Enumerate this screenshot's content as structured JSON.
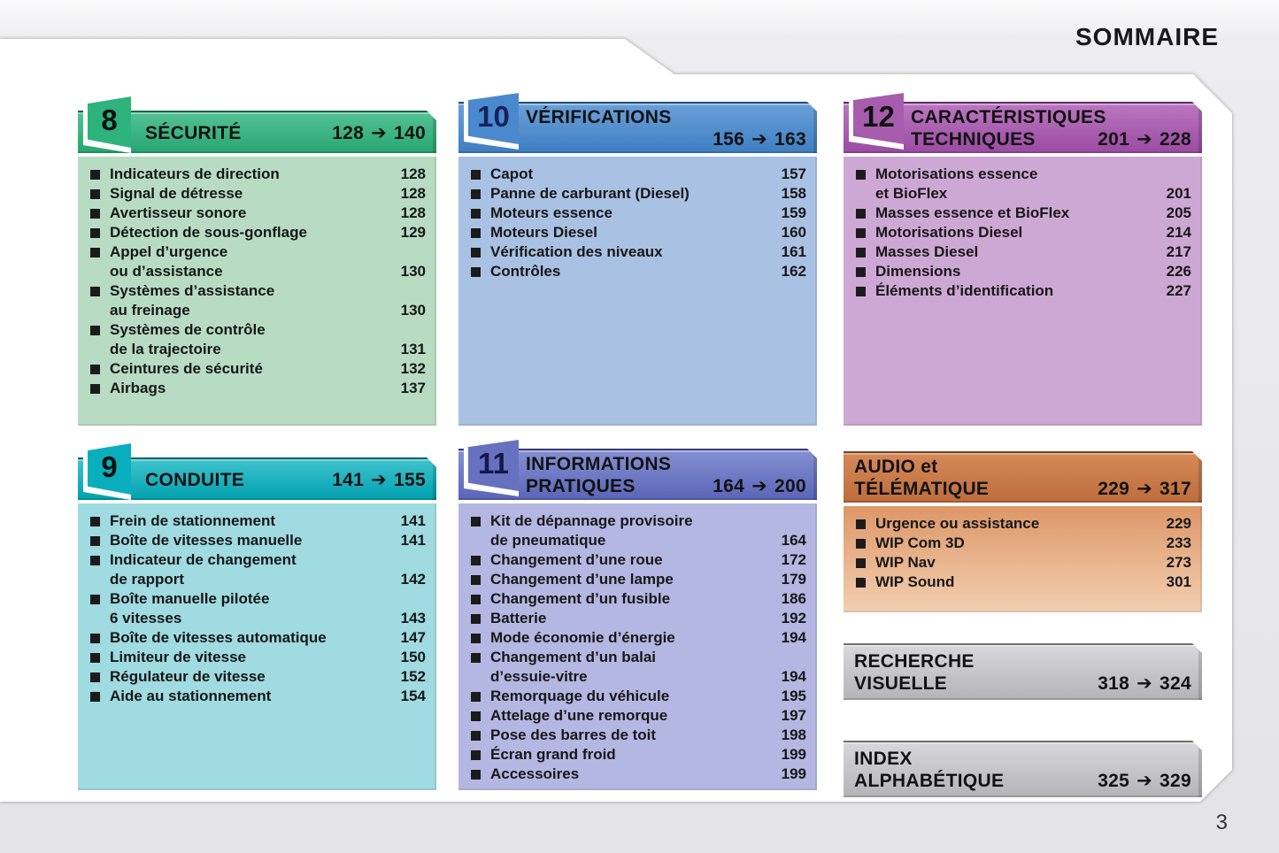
{
  "page": {
    "title": "SOMMAIRE",
    "page_number": "3"
  },
  "glyphs": {
    "arrow": "➔"
  },
  "columns": [
    {
      "boxes": [
        {
          "number": "8",
          "title_line1": "SÉCURITÉ",
          "range_from": "128",
          "range_to": "140",
          "colors": {
            "hdr_top": "#55c294",
            "hdr_bot": "#27a572",
            "body_top": "#b7dcc3",
            "body_bot": "#b7dcc3",
            "plate": "#2eb37d",
            "num": "#101010"
          },
          "items": [
            {
              "lines": [
                "Indicateurs de direction"
              ],
              "page": "128"
            },
            {
              "lines": [
                "Signal de détresse"
              ],
              "page": "128"
            },
            {
              "lines": [
                "Avertisseur sonore"
              ],
              "page": "128"
            },
            {
              "lines": [
                "Détection de sous-gonflage"
              ],
              "page": "129"
            },
            {
              "lines": [
                "Appel d’urgence",
                "ou d’assistance"
              ],
              "page": "130"
            },
            {
              "lines": [
                "Systèmes d’assistance",
                "au freinage"
              ],
              "page": "130"
            },
            {
              "lines": [
                "Systèmes de contrôle",
                "de la trajectoire"
              ],
              "page": "131"
            },
            {
              "lines": [
                "Ceintures de sécurité"
              ],
              "page": "132"
            },
            {
              "lines": [
                "Airbags"
              ],
              "page": "137"
            }
          ]
        },
        {
          "number": "9",
          "title_line1": "CONDUITE",
          "range_from": "141",
          "range_to": "155",
          "colors": {
            "hdr_top": "#3fc3cd",
            "hdr_bot": "#00a0af",
            "body_top": "#9fdbe1",
            "body_bot": "#9fdbe1",
            "plate": "#09aebc",
            "num": "#101010"
          },
          "items": [
            {
              "lines": [
                "Frein de stationnement"
              ],
              "page": "141"
            },
            {
              "lines": [
                "Boîte de vitesses manuelle"
              ],
              "page": "141"
            },
            {
              "lines": [
                "Indicateur de changement",
                "de rapport"
              ],
              "page": "142"
            },
            {
              "lines": [
                "Boîte manuelle pilotée",
                "6 vitesses"
              ],
              "page": "143"
            },
            {
              "lines": [
                "Boîte de vitesses automatique"
              ],
              "page": "147"
            },
            {
              "lines": [
                "Limiteur de vitesse"
              ],
              "page": "150"
            },
            {
              "lines": [
                "Régulateur de vitesse"
              ],
              "page": "152"
            },
            {
              "lines": [
                "Aide au stationnement"
              ],
              "page": "154"
            }
          ]
        }
      ]
    },
    {
      "boxes": [
        {
          "number": "10",
          "title_line1": "VÉRIFICATIONS",
          "title_line2": "",
          "range_from": "156",
          "range_to": "163",
          "colors": {
            "hdr_top": "#6ba0d8",
            "hdr_bot": "#3e7ec2",
            "body_top": "#a9c1e3",
            "body_bot": "#a9c1e3",
            "plate": "#4a89cd",
            "num": "#16225c"
          },
          "items": [
            {
              "lines": [
                "Capot"
              ],
              "page": "157"
            },
            {
              "lines": [
                "Panne de carburant (Diesel)"
              ],
              "page": "158"
            },
            {
              "lines": [
                "Moteurs essence"
              ],
              "page": "159"
            },
            {
              "lines": [
                "Moteurs Diesel"
              ],
              "page": "160"
            },
            {
              "lines": [
                "Vérification des niveaux"
              ],
              "page": "161"
            },
            {
              "lines": [
                "Contrôles"
              ],
              "page": "162"
            }
          ]
        },
        {
          "number": "11",
          "title_line1": "INFORMATIONS",
          "title_line2": "PRATIQUES",
          "range_from": "164",
          "range_to": "200",
          "colors": {
            "hdr_top": "#8590d2",
            "hdr_bot": "#5a65b8",
            "body_top": "#b4b7e2",
            "body_bot": "#b4b7e2",
            "plate": "#6671c0",
            "num": "#14184a"
          },
          "items": [
            {
              "lines": [
                "Kit de dépannage provisoire",
                "de pneumatique"
              ],
              "page": "164"
            },
            {
              "lines": [
                "Changement d’une roue"
              ],
              "page": "172"
            },
            {
              "lines": [
                "Changement d’une lampe"
              ],
              "page": "179"
            },
            {
              "lines": [
                "Changement d’un fusible"
              ],
              "page": "186"
            },
            {
              "lines": [
                "Batterie"
              ],
              "page": "192"
            },
            {
              "lines": [
                "Mode économie d’énergie"
              ],
              "page": "194"
            },
            {
              "lines": [
                "Changement d’un balai",
                "d’essuie-vitre"
              ],
              "page": "194"
            },
            {
              "lines": [
                "Remorquage du véhicule"
              ],
              "page": "195"
            },
            {
              "lines": [
                "Attelage d’une remorque"
              ],
              "page": "197"
            },
            {
              "lines": [
                "Pose des barres de toit"
              ],
              "page": "198"
            },
            {
              "lines": [
                "Écran grand froid"
              ],
              "page": "199"
            },
            {
              "lines": [
                "Accessoires"
              ],
              "page": "199"
            }
          ]
        }
      ]
    },
    {
      "boxes": [
        {
          "number": "12",
          "title_line1": "CARACTÉRISTIQUES",
          "title_line2": "TECHNIQUES",
          "range_from": "201",
          "range_to": "228",
          "colors": {
            "hdr_top": "#bb77c0",
            "hdr_bot": "#9a4ba2",
            "body_top": "#cea8d4",
            "body_bot": "#cea8d4",
            "plate": "#a75cad",
            "num": "#101010"
          },
          "items": [
            {
              "lines": [
                "Motorisations essence",
                "et BioFlex"
              ],
              "page": "201"
            },
            {
              "lines": [
                "Masses essence et BioFlex"
              ],
              "page": "205"
            },
            {
              "lines": [
                "Motorisations Diesel"
              ],
              "page": "214"
            },
            {
              "lines": [
                "Masses Diesel"
              ],
              "page": "217"
            },
            {
              "lines": [
                "Dimensions"
              ],
              "page": "226"
            },
            {
              "lines": [
                "Éléments d’identification"
              ],
              "page": "227"
            }
          ]
        },
        {
          "title_line1": "AUDIO et",
          "title_line2": "TÉLÉMATIQUE",
          "range_from": "229",
          "range_to": "317",
          "colors": {
            "hdr_top": "#d68a58",
            "hdr_bot": "#bd6c3c",
            "body_top": "#dd9768",
            "body_bot": "#f3cfb2"
          },
          "items": [
            {
              "lines": [
                "Urgence ou assistance"
              ],
              "page": "229"
            },
            {
              "lines": [
                "WIP Com 3D"
              ],
              "page": "233"
            },
            {
              "lines": [
                "WIP Nav"
              ],
              "page": "273"
            },
            {
              "lines": [
                "WIP Sound"
              ],
              "page": "301"
            }
          ]
        },
        {
          "title_line1": "RECHERCHE",
          "title_line2": "VISUELLE",
          "range_from": "318",
          "range_to": "324",
          "colors": {
            "hdr_top": "#d8d8da",
            "hdr_bot": "#b4b4b6"
          },
          "items": []
        },
        {
          "title_line1": "INDEX",
          "title_line2": "ALPHABÉTIQUE",
          "range_from": "325",
          "range_to": "329",
          "colors": {
            "hdr_top": "#d8d8da",
            "hdr_bot": "#b4b4b6"
          },
          "items": []
        }
      ]
    }
  ]
}
